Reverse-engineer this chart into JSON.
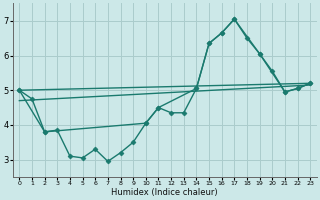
{
  "background_color": "#cce8e8",
  "grid_color": "#aacccc",
  "line_color": "#1a7a6e",
  "xlabel": "Humidex (Indice chaleur)",
  "xlim": [
    -0.5,
    23.5
  ],
  "ylim": [
    2.5,
    7.5
  ],
  "yticks": [
    3,
    4,
    5,
    6,
    7
  ],
  "xticks": [
    0,
    1,
    2,
    3,
    4,
    5,
    6,
    7,
    8,
    9,
    10,
    11,
    12,
    13,
    14,
    15,
    16,
    17,
    18,
    19,
    20,
    21,
    22,
    23
  ],
  "series": [
    {
      "x": [
        0,
        1,
        2,
        3,
        4,
        5,
        6,
        7,
        8,
        9,
        10,
        11,
        12,
        13,
        14,
        15,
        16,
        17,
        18,
        19,
        20,
        21,
        22,
        23
      ],
      "y": [
        5.0,
        4.75,
        3.8,
        3.85,
        3.1,
        3.05,
        3.3,
        2.95,
        3.2,
        3.5,
        4.05,
        4.5,
        4.35,
        4.35,
        5.05,
        6.35,
        6.65,
        7.05,
        6.5,
        6.05,
        5.55,
        4.95,
        5.05,
        5.2
      ],
      "marker": "D",
      "markersize": 2.5,
      "linewidth": 1.0
    },
    {
      "x": [
        0,
        2,
        10,
        11,
        14,
        15,
        16,
        17,
        19,
        21,
        22,
        23
      ],
      "y": [
        5.0,
        3.8,
        4.05,
        4.5,
        5.05,
        6.35,
        6.65,
        7.05,
        6.05,
        4.95,
        5.05,
        5.2
      ],
      "marker": "D",
      "markersize": 2.5,
      "linewidth": 1.0
    },
    {
      "x": [
        0,
        23
      ],
      "y": [
        4.7,
        5.15
      ],
      "marker": null,
      "markersize": 0,
      "linewidth": 1.0
    },
    {
      "x": [
        0,
        23
      ],
      "y": [
        5.0,
        5.2
      ],
      "marker": null,
      "markersize": 0,
      "linewidth": 1.0
    }
  ]
}
